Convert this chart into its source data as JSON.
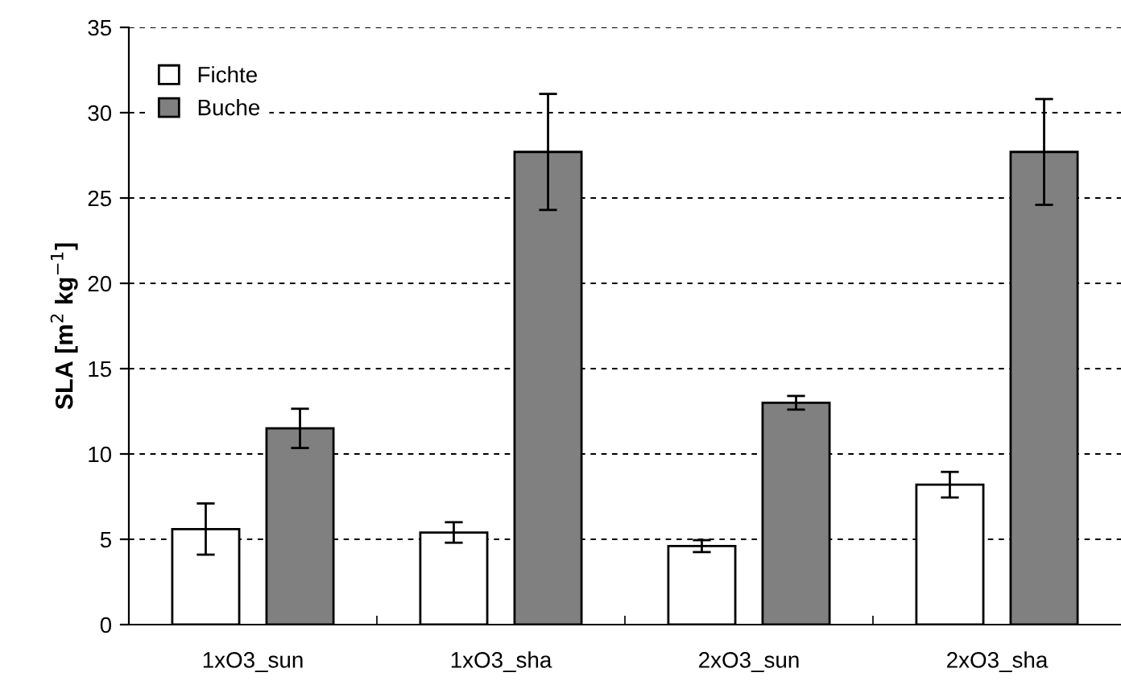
{
  "chart_data": {
    "type": "bar",
    "ylabel": "SLA [m$^{2}$ kg$^{−1}$]",
    "categories": [
      "1xO3_sun",
      "1xO3_sha",
      "2xO3_sun",
      "2xO3_sha"
    ],
    "series": [
      {
        "name": "Fichte",
        "color": "#ffffff",
        "values": [
          5.6,
          5.4,
          4.6,
          8.2
        ],
        "errors": [
          1.5,
          0.6,
          0.35,
          0.75
        ]
      },
      {
        "name": "Buche",
        "color": "#808080",
        "values": [
          11.5,
          27.7,
          13.0,
          27.7
        ],
        "errors": [
          1.15,
          3.4,
          0.4,
          3.1
        ]
      }
    ],
    "ylim": [
      0,
      35
    ],
    "yticks": [
      0,
      5,
      10,
      15,
      20,
      25,
      30,
      35
    ],
    "grid": "y",
    "legend": "top left"
  }
}
